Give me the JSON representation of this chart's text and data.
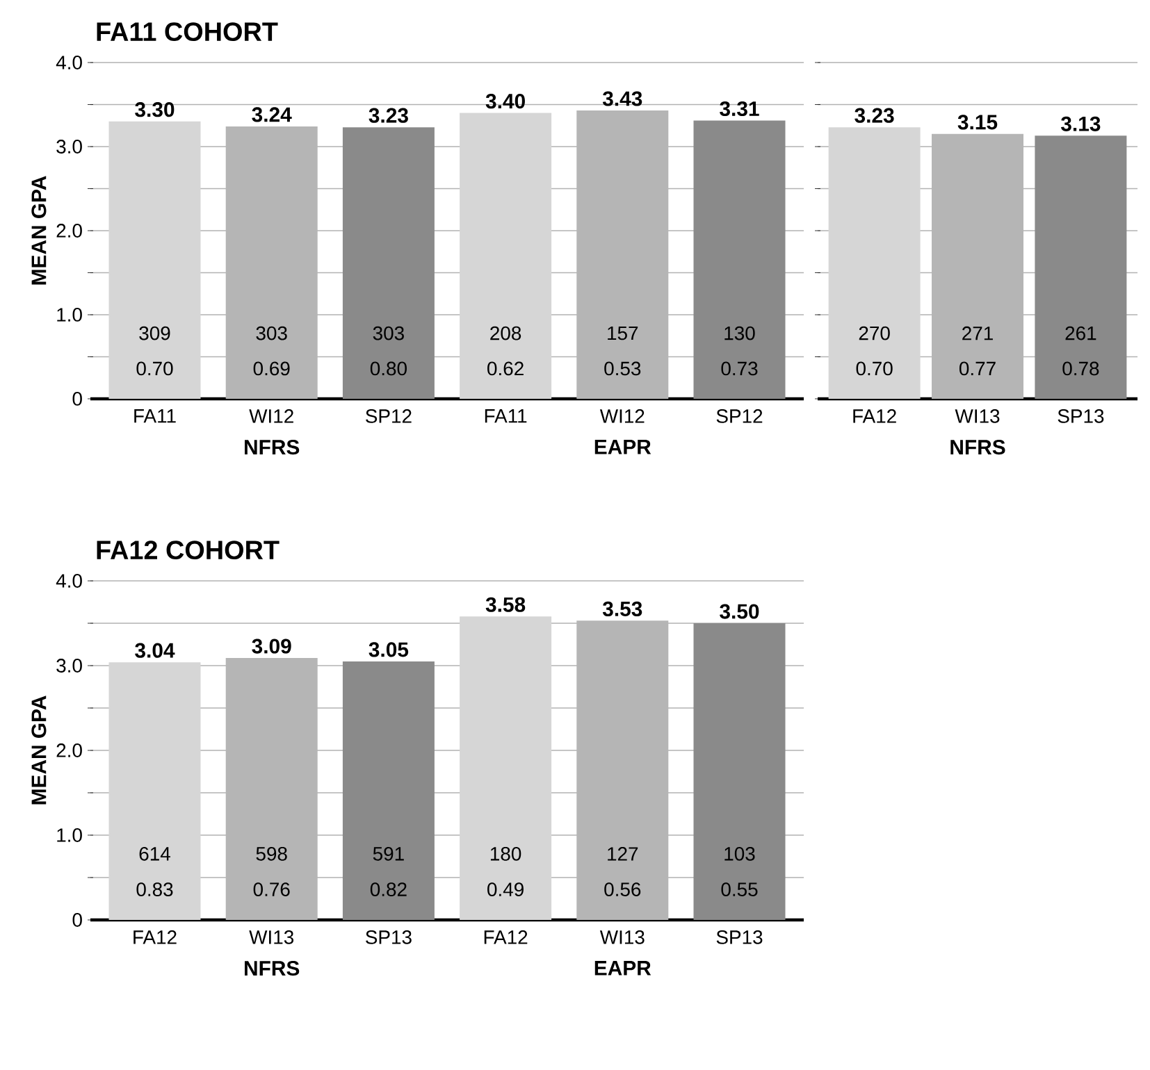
{
  "chart_data": [
    {
      "type": "bar",
      "title": "FA11 COHORT",
      "ylabel": "MEAN GPA",
      "categories": [
        "FA11",
        "WI12",
        "SP12",
        "FA11",
        "WI12",
        "SP12"
      ],
      "values": [
        3.3,
        3.24,
        3.23,
        3.4,
        3.43,
        3.31
      ],
      "value_labels": [
        "3.30",
        "3.24",
        "3.23",
        "3.40",
        "3.43",
        "3.31"
      ],
      "colors": [
        "#d6d6d6",
        "#b5b5b5",
        "#8a8a8a",
        "#d6d6d6",
        "#b5b5b5",
        "#8a8a8a"
      ],
      "ylim": [
        0,
        4
      ],
      "yticks": [
        0,
        {
          "value": 0.5,
          "label": null
        },
        {
          "value": 1,
          "label": "1.0"
        },
        {
          "value": 1.5,
          "label": null
        },
        {
          "value": 2,
          "label": "2.0"
        },
        {
          "value": 2.5,
          "label": null
        },
        {
          "value": 3,
          "label": "3.0"
        },
        {
          "value": 3.5,
          "label": null
        },
        {
          "value": 4,
          "label": "4.0"
        }
      ],
      "grid": "y",
      "annotations": [
        "NFRS",
        "EAPR",
        "309",
        "0.70",
        "303",
        "0.69",
        "303",
        "0.80",
        "208",
        "0.62",
        "157",
        "0.53",
        "130",
        "0.73"
      ]
    },
    {
      "type": "bar",
      "categories": [
        "FA12",
        "WI13",
        "SP13"
      ],
      "values": [
        3.23,
        3.15,
        3.13
      ],
      "value_labels": [
        "3.23",
        "3.15",
        "3.13"
      ],
      "colors": [
        "#d6d6d6",
        "#b5b5b5",
        "#8a8a8a"
      ],
      "ylim": [
        0,
        4
      ],
      "yticks": [
        {
          "value": 0,
          "label": null
        },
        {
          "value": 0.5,
          "label": null
        },
        {
          "value": 1,
          "label": null
        },
        {
          "value": 1.5,
          "label": null
        },
        {
          "value": 2,
          "label": null
        },
        {
          "value": 2.5,
          "label": null
        },
        {
          "value": 3,
          "label": null
        },
        {
          "value": 3.5,
          "label": null
        },
        {
          "value": 4,
          "label": null
        }
      ],
      "grid": "y",
      "tick_labels": "x",
      "annotations": [
        "NFRS",
        "270",
        "0.70",
        "271",
        "0.77",
        "261",
        "0.78"
      ]
    },
    {
      "type": "bar",
      "title": "FA12 COHORT",
      "ylabel": "MEAN GPA",
      "categories": [
        "FA12",
        "WI13",
        "SP13",
        "FA12",
        "WI13",
        "SP13"
      ],
      "values": [
        3.04,
        3.09,
        3.05,
        3.58,
        3.53,
        3.5
      ],
      "value_labels": [
        "3.04",
        "3.09",
        "3.05",
        "3.58",
        "3.53",
        "3.50"
      ],
      "colors": [
        "#d6d6d6",
        "#b5b5b5",
        "#8a8a8a",
        "#d6d6d6",
        "#b5b5b5",
        "#8a8a8a"
      ],
      "ylim": [
        0,
        4
      ],
      "yticks": [
        0,
        {
          "value": 0.5,
          "label": null
        },
        {
          "value": 1,
          "label": "1.0"
        },
        {
          "value": 1.5,
          "label": null
        },
        {
          "value": 2,
          "label": "2.0"
        },
        {
          "value": 2.5,
          "label": null
        },
        {
          "value": 3,
          "label": "3.0"
        },
        {
          "value": 3.5,
          "label": null
        },
        {
          "value": 4,
          "label": "4.0"
        }
      ],
      "grid": "y",
      "annotations": [
        "NFRS",
        "EAPR",
        "614",
        "0.83",
        "598",
        "0.76",
        "591",
        "0.82",
        "180",
        "0.49",
        "127",
        "0.56",
        "103",
        "0.55"
      ]
    }
  ]
}
